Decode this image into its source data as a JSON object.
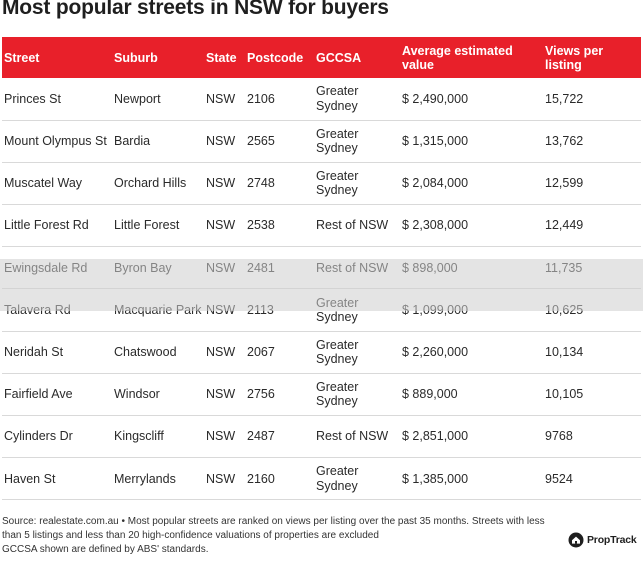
{
  "title": "Most popular streets in NSW for buyers",
  "table": {
    "headers": [
      "Street",
      "Suburb",
      "State",
      "Postcode",
      "GCCSA",
      "Average estimated value",
      "Views per listing"
    ],
    "rows": [
      [
        "Princes St",
        "Newport",
        "NSW",
        "2106",
        "Greater Sydney",
        "$ 2,490,000",
        "15,722"
      ],
      [
        "Mount Olympus St",
        "Bardia",
        "NSW",
        "2565",
        "Greater Sydney",
        "$ 1,315,000",
        "13,762"
      ],
      [
        "Muscatel Way",
        "Orchard Hills",
        "NSW",
        "2748",
        "Greater Sydney",
        "$ 2,084,000",
        "12,599"
      ],
      [
        "Little Forest Rd",
        "Little Forest",
        "NSW",
        "2538",
        "Rest of NSW",
        "$ 2,308,000",
        "12,449"
      ],
      [
        "Ewingsdale Rd",
        "Byron Bay",
        "NSW",
        "2481",
        "Rest of NSW",
        "$ 898,000",
        "11,735"
      ],
      [
        "Talavera Rd",
        "Macquarie Park",
        "NSW",
        "2113",
        "Greater Sydney",
        "$ 1,099,000",
        "10,625"
      ],
      [
        "Neridah St",
        "Chatswood",
        "NSW",
        "2067",
        "Greater Sydney",
        "$ 2,260,000",
        "10,134"
      ],
      [
        "Fairfield Ave",
        "Windsor",
        "NSW",
        "2756",
        "Greater Sydney",
        "$ 889,000",
        "10,105"
      ],
      [
        "Cylinders Dr",
        "Kingscliff",
        "NSW",
        "2487",
        "Rest of NSW",
        "$ 2,851,000",
        "9768"
      ],
      [
        "Haven St",
        "Merrylands",
        "NSW",
        "2160",
        "Greater Sydney",
        "$ 1,385,000",
        "9524"
      ]
    ]
  },
  "footer": {
    "source": "Source: realestate.com.au • Most popular streets are ranked on views per listing over the past 35 months. Streets with less than 5 listings and less than 20 high-confidence valuations of properties are excluded",
    "note": "GCCSA shown are defined by ABS' standards."
  },
  "logo": {
    "text": "PropTrack",
    "icon": "house-icon"
  },
  "colors": {
    "header_bg": "#e8202a",
    "header_text": "#ffffff",
    "row_border": "#d9d9d9"
  }
}
